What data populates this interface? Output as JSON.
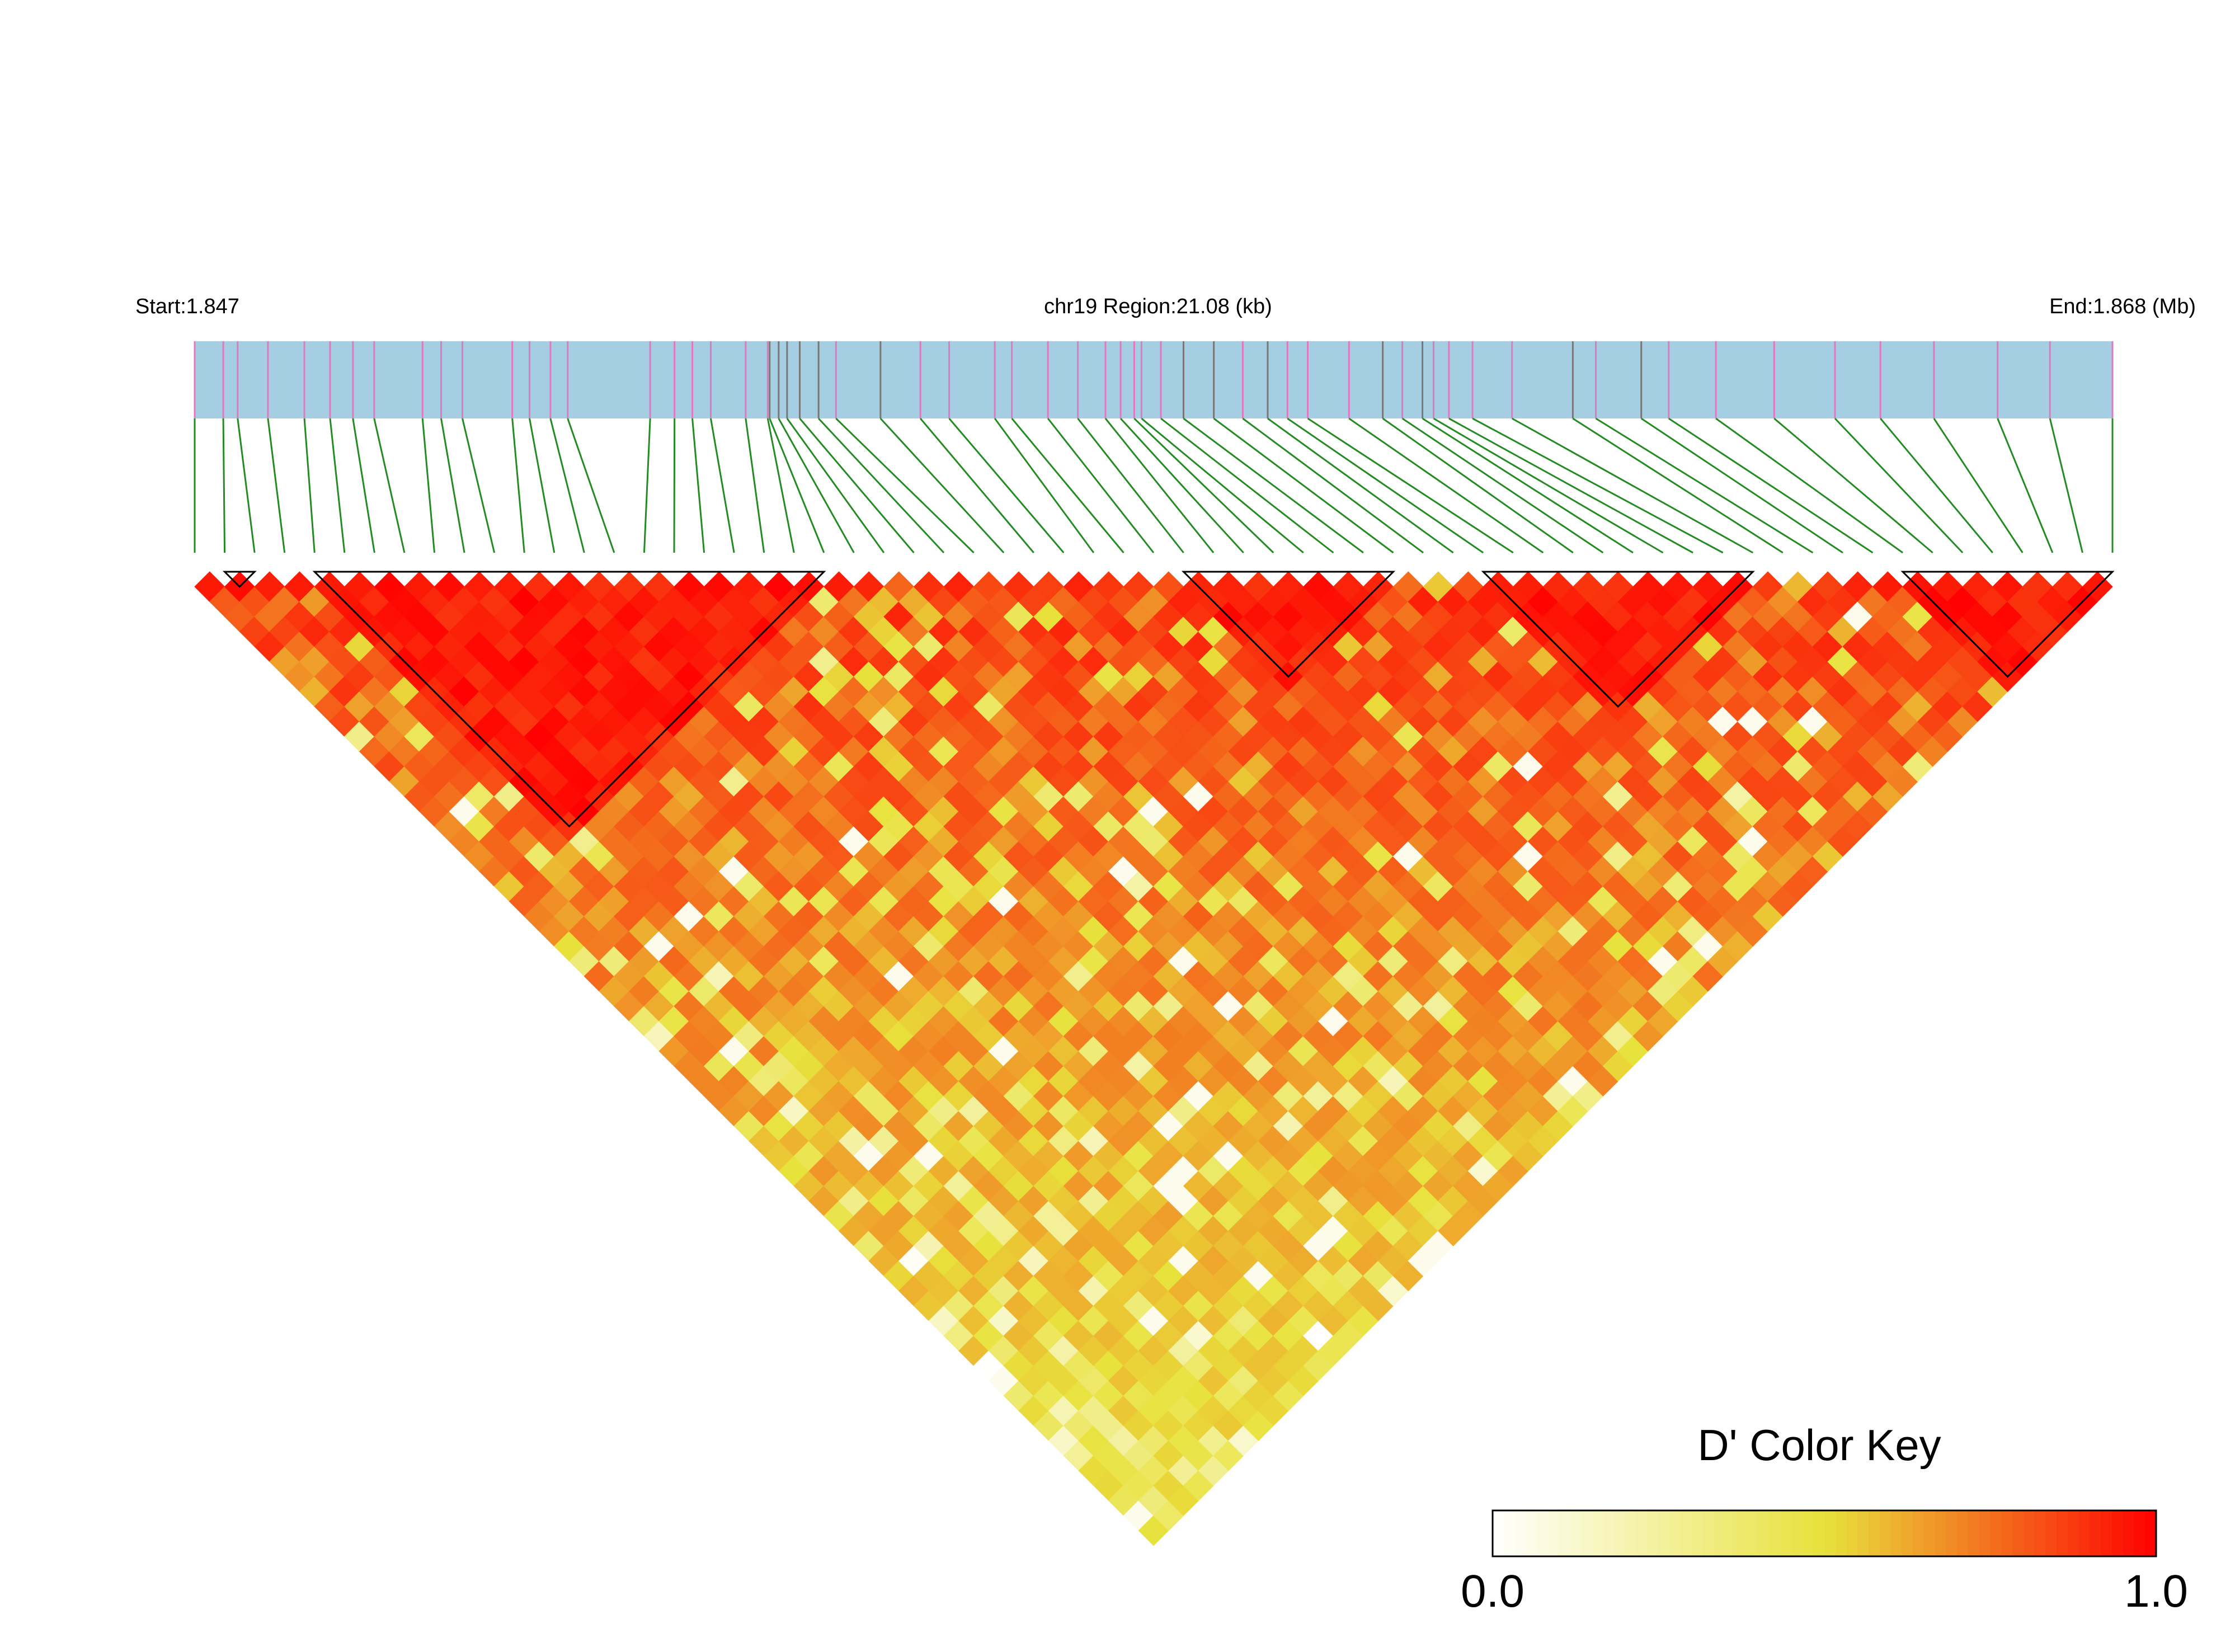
{
  "chart_data": {
    "type": "heatmap",
    "subtype": "LD block triangle (LDBlockShow style)",
    "header": {
      "start_label": "Start:1.847",
      "region_label": "chr19 Region:21.08 (kb)",
      "end_label": "End:1.868 (Mb)"
    },
    "region": {
      "chromosome": "chr19",
      "start_mb": 1.847,
      "end_mb": 1.868,
      "length_kb": 21.08
    },
    "n_snps": 65,
    "snp_positions_frac": [
      0,
      0.0149,
      0.0224,
      0.0382,
      0.0572,
      0.0706,
      0.0825,
      0.0936,
      0.1188,
      0.1285,
      0.1396,
      0.1656,
      0.1746,
      0.1855,
      0.1945,
      0.2375,
      0.2502,
      0.2595,
      0.2691,
      0.2873,
      0.2988,
      0.2998,
      0.3045,
      0.3089,
      0.3155,
      0.3253,
      0.3344,
      0.3576,
      0.3784,
      0.3934,
      0.4172,
      0.4261,
      0.4449,
      0.4605,
      0.4749,
      0.4828,
      0.4899,
      0.4937,
      0.5038,
      0.5156,
      0.5314,
      0.5465,
      0.5595,
      0.5698,
      0.5804,
      0.6019,
      0.6195,
      0.6297,
      0.6402,
      0.646,
      0.654,
      0.6663,
      0.6869,
      0.7186,
      0.7306,
      0.7543,
      0.7686,
      0.7932,
      0.8236,
      0.8553,
      0.879,
      0.9069,
      0.9401,
      0.9674,
      1.0
    ],
    "snp_colors": [
      "#e377c2",
      "#777777"
    ],
    "snp_dark_indices": [
      21,
      22,
      23,
      24,
      25,
      27,
      39,
      40,
      42,
      46,
      48,
      53,
      55
    ],
    "blocks": [
      [
        1,
        2
      ],
      [
        4,
        21
      ],
      [
        33,
        40
      ],
      [
        43,
        52
      ],
      [
        57,
        64
      ]
    ],
    "d_prime_seed": 7,
    "colors": {
      "track_fill": "#a6cee3",
      "connector": "#228b22",
      "block_outline": "#000000",
      "key_low": "#ffffff",
      "key_mid": "#e8e23c",
      "key_high": "#ff0000"
    },
    "color_key": {
      "title": "D' Color Key",
      "min_label": "0.0",
      "max_label": "1.0",
      "range": [
        0,
        1
      ]
    }
  }
}
